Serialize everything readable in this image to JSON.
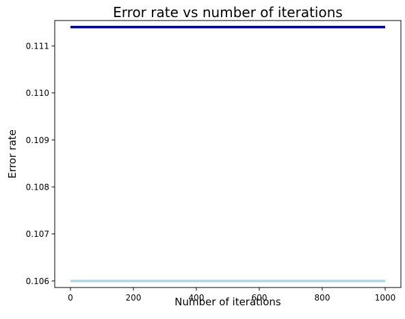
{
  "chart_data": {
    "type": "line",
    "title": "Error rate vs number of iterations",
    "xlabel": "Number of iterations",
    "ylabel": "Error rate",
    "xlim": [
      -50,
      1050
    ],
    "ylim": [
      105.86,
      111.54
    ],
    "x_ticks": [
      0,
      200,
      400,
      600,
      800,
      1000
    ],
    "x_tick_labels": [
      "0",
      "200",
      "400",
      "600",
      "800",
      "1000"
    ],
    "y_ticks": [
      106,
      107,
      108,
      109,
      110,
      111
    ],
    "y_tick_labels": [
      "0.106",
      "0.107",
      "0.108",
      "0.109",
      "0.110",
      "0.111"
    ],
    "grid": false,
    "series": [
      {
        "x": [
          0,
          1000
        ],
        "y": [
          111.4,
          111.4
        ],
        "color": "#000080"
      },
      {
        "x": [
          0,
          1000
        ],
        "y": [
          106.0,
          106.0
        ],
        "color": "#add8e6"
      }
    ]
  }
}
